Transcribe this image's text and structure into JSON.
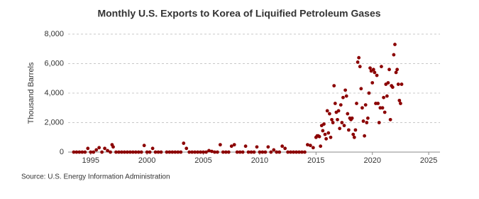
{
  "chart_data": {
    "type": "scatter",
    "title": "Monthly U.S. Exports to Korea of Liquified Petroleum Gases",
    "y_label": "Thousand Barrels",
    "source": "Source: U.S. Energy Information Administration",
    "color": "#8b0000",
    "grid": true,
    "xlim": [
      1993,
      2026
    ],
    "xticks": [
      1995,
      2000,
      2005,
      2010,
      2015,
      2020,
      2025
    ],
    "ylim": [
      0,
      8000
    ],
    "yticks": [
      0,
      {
        "value": 2000,
        "label": "2,000"
      },
      {
        "value": 4000,
        "label": "4,000"
      },
      {
        "value": 6000,
        "label": "6,000"
      },
      {
        "value": 8000,
        "label": "8,000"
      }
    ],
    "x": [
      1993.5,
      1993.75,
      1994,
      1994.25,
      1994.5,
      1994.75,
      1995,
      1995.25,
      1995.5,
      1995.75,
      1996,
      1996.25,
      1996.5,
      1996.75,
      1997,
      1997.25,
      1997.5,
      1997.75,
      1998,
      1998.25,
      1998.5,
      1998.75,
      1999,
      1999.25,
      1999.5,
      1999.75,
      2000,
      2000.25,
      2000.5,
      2000.75,
      2001,
      2001.25,
      1996.9,
      2001.75,
      2002,
      2002.25,
      2002.5,
      2002.75,
      2003,
      2003.25,
      2003.5,
      2003.75,
      2004,
      2004.25,
      2004.5,
      2004.75,
      2005,
      2005.25,
      2005.5,
      2005.75,
      2006,
      2006.25,
      2006.5,
      2006.75,
      2007,
      2007.25,
      2007.5,
      2007.75,
      2008,
      2008.25,
      2008.5,
      2008.75,
      2009,
      2009.25,
      2009.5,
      2009.75,
      2010,
      2010.25,
      2010.5,
      2010.75,
      2011,
      2011.25,
      2011.5,
      2011.75,
      2012,
      2012.25,
      2012.5,
      2012.75,
      2013,
      2013.25,
      2013.5,
      2013.75,
      2014,
      2014.25,
      2014.5,
      2014.75,
      2015,
      2015.1,
      2015.2,
      2015.3,
      2015.4,
      2015.5,
      2015.6,
      2015.7,
      2015.8,
      2015.9,
      2016,
      2016.1,
      2016.2,
      2016.3,
      2016.4,
      2016.5,
      2016.6,
      2016.7,
      2016.8,
      2016.9,
      2017,
      2017.1,
      2017.2,
      2017.3,
      2017.4,
      2017.5,
      2017.6,
      2017.7,
      2017.8,
      2017.9,
      2018,
      2018.1,
      2018.2,
      2018.3,
      2018.4,
      2018.5,
      2018.6,
      2018.7,
      2018.8,
      2018.9,
      2019,
      2019.1,
      2019.2,
      2019.3,
      2019.4,
      2019.5,
      2019.6,
      2019.7,
      2019.8,
      2019.9,
      2020,
      2020.1,
      2020.2,
      2020.3,
      2020.4,
      2020.5,
      2020.6,
      2020.7,
      2020.8,
      2020.9,
      2021,
      2021.1,
      2021.2,
      2021.3,
      2021.4,
      2021.5,
      2021.6,
      2021.7,
      2021.8,
      2021.9,
      2022,
      2022.1,
      2022.2,
      2022.3,
      2022.4,
      2022.5,
      2022.6
    ],
    "values": [
      0,
      0,
      0,
      0,
      0,
      250,
      0,
      0,
      150,
      300,
      0,
      250,
      100,
      0,
      350,
      0,
      0,
      0,
      0,
      0,
      0,
      0,
      0,
      0,
      0,
      450,
      0,
      0,
      250,
      0,
      0,
      0,
      500,
      0,
      0,
      0,
      0,
      0,
      0,
      600,
      250,
      0,
      0,
      0,
      0,
      0,
      0,
      0,
      100,
      50,
      0,
      0,
      500,
      0,
      0,
      0,
      400,
      500,
      0,
      0,
      0,
      400,
      0,
      0,
      0,
      350,
      0,
      0,
      0,
      350,
      0,
      150,
      0,
      0,
      400,
      250,
      0,
      0,
      0,
      0,
      0,
      0,
      0,
      500,
      450,
      300,
      1000,
      1100,
      1100,
      1050,
      400,
      1800,
      1450,
      1900,
      1200,
      900,
      2800,
      1300,
      2600,
      1000,
      2200,
      2000,
      4500,
      3300,
      2700,
      2200,
      2800,
      1600,
      3200,
      2000,
      3700,
      1800,
      4200,
      3800,
      2600,
      1500,
      2300,
      2200,
      2300,
      1200,
      1000,
      1500,
      3300,
      6100,
      6400,
      5800,
      4300,
      3000,
      2100,
      1100,
      3200,
      2000,
      2300,
      4000,
      5700,
      5500,
      4700,
      5600,
      5400,
      3300,
      5200,
      3300,
      2000,
      3000,
      5800,
      3000,
      3700,
      2700,
      4600,
      3800,
      4700,
      5600,
      2200,
      4500,
      4400,
      6600,
      7300,
      5400,
      5600,
      4600,
      3500,
      3300,
      4600
    ]
  }
}
